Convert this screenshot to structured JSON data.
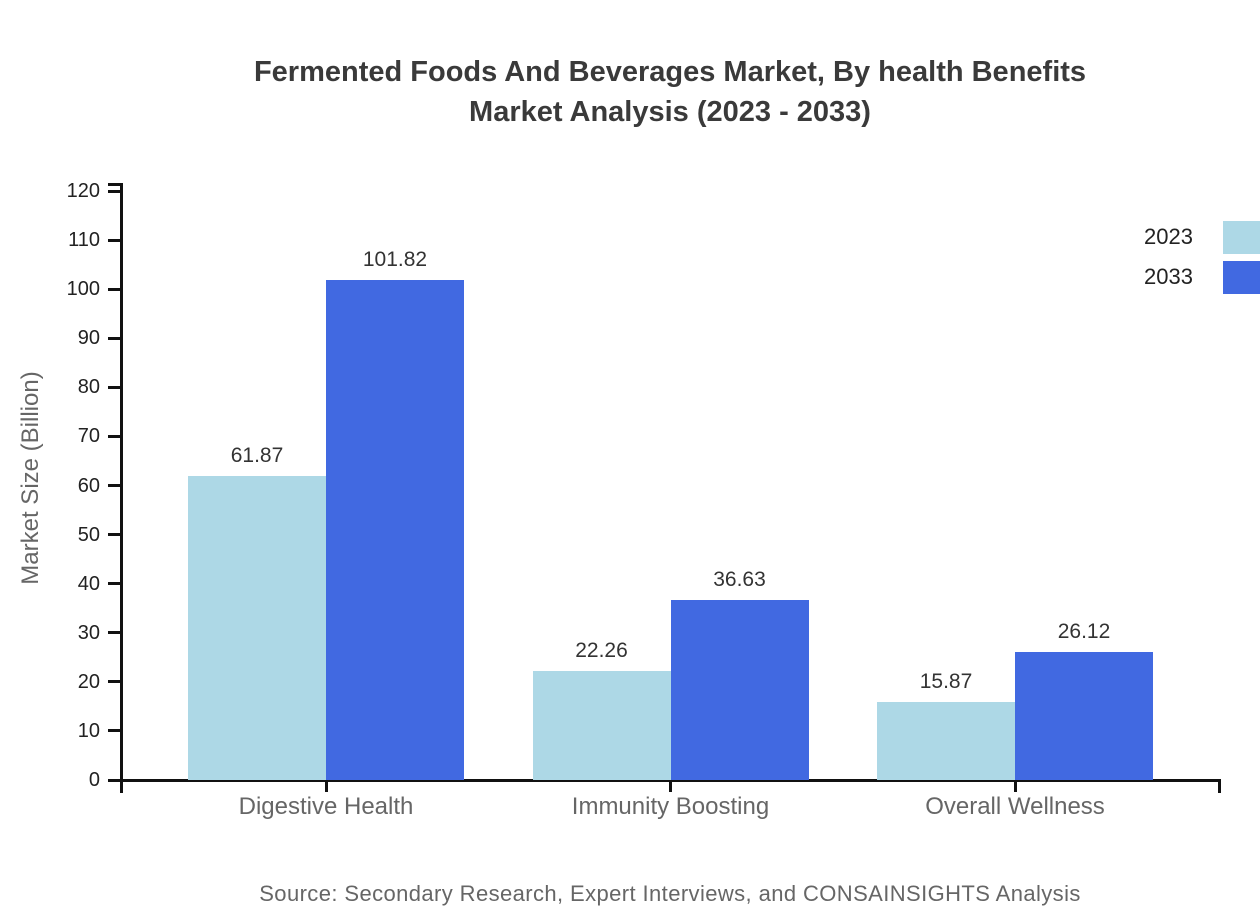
{
  "header": {
    "title_line1": "Fermented Foods And Beverages Market, By health Benefits",
    "title_line2": "Market Analysis (2023 - 2033)"
  },
  "chart_data": {
    "type": "bar",
    "title": "Fermented Foods And Beverages Market, By health Benefits Market Analysis (2023 - 2033)",
    "categories": [
      "Digestive Health",
      "Immunity Boosting",
      "Overall Wellness"
    ],
    "series": [
      {
        "name": "2023",
        "color": "#ADD8E6",
        "values": [
          61.87,
          22.26,
          15.87
        ]
      },
      {
        "name": "2033",
        "color": "#4169E1",
        "values": [
          101.82,
          36.63,
          26.12
        ]
      }
    ],
    "xlabel": "",
    "ylabel": "Market Size (Billion)",
    "ylim": [
      0,
      120
    ],
    "ytick_step": 10,
    "grid": false,
    "legend_position": "top-right",
    "value_labels": true,
    "axis_color": "#111111",
    "tick_label_color": "#222222",
    "value_label_color": "#333333",
    "category_label_color": "#666666"
  },
  "footer": {
    "source": "Source: Secondary Research, Expert Interviews, and CONSAINSIGHTS Analysis"
  }
}
